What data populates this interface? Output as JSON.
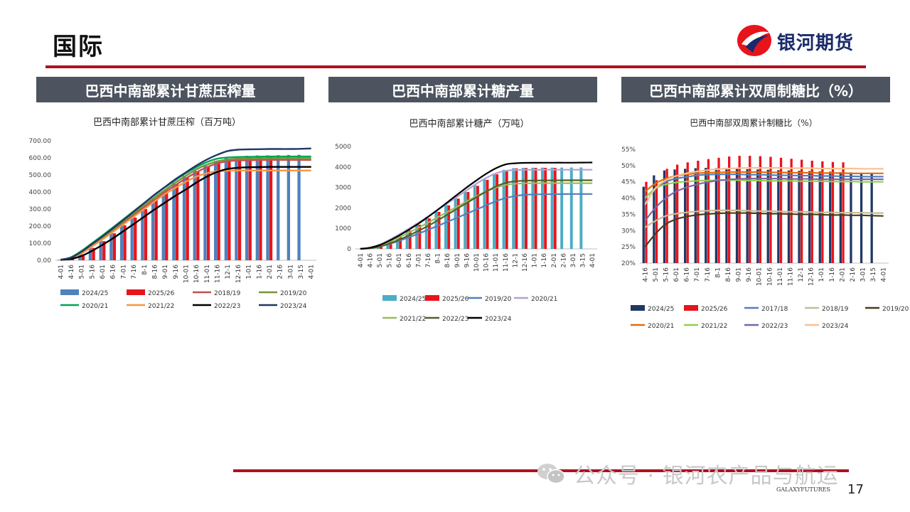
{
  "header": {
    "title": "国际",
    "logo_text": "银河期货"
  },
  "footer": {
    "watermark": "公众号 · 银河农产品与航运",
    "brand": "GALAXYFUTURES",
    "page_number": "17"
  },
  "chart_data": [
    {
      "panel_title": "巴西中南部累计甘蔗压榨量",
      "title": "巴西中南部累计甘蔗压榨（百万吨）",
      "type": "bar",
      "categories": [
        "4-01",
        "4-16",
        "5-01",
        "5-16",
        "6-01",
        "6-16",
        "7-01",
        "7-16",
        "8-1",
        "8-16",
        "9-01",
        "9-16",
        "10-01",
        "10-16",
        "11-01",
        "11-16",
        "12-1",
        "12-16",
        "1-01",
        "1-16",
        "2-01",
        "2-16",
        "3-01",
        "3-15",
        "4-01"
      ],
      "yticks": [
        "0.00",
        "100.00",
        "200.00",
        "300.00",
        "400.00",
        "500.00",
        "600.00",
        "700.00"
      ],
      "ylim": [
        0,
        700
      ],
      "legend_position": "bottom",
      "series": [
        {
          "name": "2024/25",
          "kind": "bar",
          "color": "#4f81bd",
          "values": [
            3,
            14,
            41,
            82,
            125,
            165,
            215,
            262,
            310,
            360,
            405,
            455,
            495,
            530,
            560,
            582,
            600,
            608,
            612,
            614,
            615,
            616,
            617,
            618,
            null
          ]
        },
        {
          "name": "2025/26",
          "kind": "bar",
          "color": "#e8141c",
          "values": [
            3,
            14,
            35,
            72,
            112,
            158,
            205,
            250,
            300,
            355,
            402,
            445,
            482,
            522,
            552,
            578,
            595,
            600,
            602,
            604,
            606,
            null,
            null,
            null,
            null
          ]
        },
        {
          "name": "2018/19",
          "kind": "line",
          "color": "#c0504d",
          "values": [
            3,
            15,
            45,
            85,
            130,
            175,
            220,
            265,
            310,
            355,
            400,
            440,
            480,
            515,
            545,
            568,
            580,
            585,
            586,
            587,
            588,
            588,
            588,
            588,
            588
          ]
        },
        {
          "name": "2019/20",
          "kind": "line",
          "color": "#77933c",
          "values": [
            3,
            16,
            48,
            90,
            135,
            180,
            228,
            275,
            322,
            368,
            412,
            455,
            495,
            532,
            560,
            580,
            590,
            594,
            596,
            597,
            598,
            598,
            598,
            598,
            598
          ]
        },
        {
          "name": "2020/21",
          "kind": "line",
          "color": "#00a651",
          "values": [
            3,
            18,
            55,
            100,
            145,
            192,
            240,
            288,
            335,
            382,
            428,
            470,
            510,
            545,
            575,
            595,
            602,
            605,
            606,
            607,
            608,
            608,
            608,
            608,
            608
          ]
        },
        {
          "name": "2021/22",
          "kind": "line",
          "color": "#f79646",
          "values": [
            3,
            14,
            40,
            80,
            122,
            165,
            210,
            255,
            300,
            345,
            388,
            425,
            460,
            490,
            510,
            522,
            525,
            526,
            526,
            526,
            526,
            526,
            526,
            526,
            526
          ]
        },
        {
          "name": "2022/23",
          "kind": "line",
          "color": "#000000",
          "values": [
            2,
            8,
            25,
            55,
            90,
            128,
            170,
            212,
            255,
            298,
            338,
            378,
            415,
            455,
            490,
            518,
            535,
            542,
            545,
            546,
            547,
            547,
            547,
            547,
            547
          ]
        },
        {
          "name": "2023/24",
          "kind": "line",
          "color": "#1f3864",
          "values": [
            3,
            16,
            50,
            95,
            140,
            187,
            235,
            285,
            335,
            385,
            430,
            475,
            515,
            555,
            590,
            618,
            640,
            648,
            650,
            651,
            652,
            652,
            652,
            653,
            655
          ]
        }
      ]
    },
    {
      "panel_title": "巴西中南部累计糖产量",
      "title": "巴西中南部累计糖产（万吨）",
      "type": "bar",
      "categories": [
        "4-01",
        "4-16",
        "5-01",
        "5-16",
        "6-01",
        "6-16",
        "7-01",
        "7-16",
        "8-1",
        "8-16",
        "9-01",
        "9-16",
        "10-01",
        "10-16",
        "11-01",
        "11-16",
        "12-1",
        "12-16",
        "1-01",
        "1-16",
        "2-01",
        "2-16",
        "3-01",
        "3-15",
        "4-01"
      ],
      "yticks": [
        "0",
        "1000",
        "2000",
        "3000",
        "4000",
        "5000"
      ],
      "ylim": [
        0,
        5000
      ],
      "legend_position": "bottom",
      "series": [
        {
          "name": "2024/25",
          "kind": "bar",
          "color": "#4bacc6",
          "values": [
            5,
            60,
            200,
            420,
            680,
            960,
            1250,
            1560,
            1880,
            2200,
            2520,
            2830,
            3130,
            3420,
            3680,
            3860,
            3940,
            3960,
            3965,
            3968,
            3970,
            3972,
            3974,
            3975,
            null
          ]
        },
        {
          "name": "2025/26",
          "kind": "bar",
          "color": "#e8141c",
          "values": [
            5,
            55,
            180,
            380,
            630,
            900,
            1180,
            1490,
            1810,
            2130,
            2460,
            2780,
            3080,
            3370,
            3640,
            3840,
            3930,
            3950,
            3955,
            3958,
            3960,
            null,
            null,
            null,
            null
          ]
        },
        {
          "name": "2019/20",
          "kind": "line",
          "color": "#4f81bd",
          "values": [
            3,
            35,
            110,
            240,
            390,
            560,
            740,
            930,
            1120,
            1320,
            1520,
            1720,
            1920,
            2120,
            2320,
            2480,
            2580,
            2640,
            2660,
            2670,
            2675,
            2678,
            2680,
            2680,
            2680
          ]
        },
        {
          "name": "2020/21",
          "kind": "line",
          "color": "#b4a0d0",
          "values": [
            5,
            65,
            210,
            440,
            700,
            980,
            1270,
            1580,
            1900,
            2220,
            2540,
            2860,
            3180,
            3460,
            3680,
            3810,
            3850,
            3860,
            3862,
            3864,
            3865,
            3865,
            3865,
            3865,
            3865
          ]
        },
        {
          "name": "2021/22",
          "kind": "line",
          "color": "#9bbb59",
          "values": [
            4,
            50,
            165,
            345,
            560,
            790,
            1030,
            1280,
            1540,
            1800,
            2060,
            2320,
            2570,
            2800,
            2990,
            3120,
            3180,
            3200,
            3205,
            3208,
            3210,
            3210,
            3210,
            3210,
            3210
          ]
        },
        {
          "name": "2022/23",
          "kind": "line",
          "color": "#4f6228",
          "values": [
            3,
            30,
            110,
            260,
            440,
            650,
            880,
            1120,
            1390,
            1670,
            1960,
            2240,
            2520,
            2790,
            3040,
            3220,
            3300,
            3330,
            3340,
            3345,
            3348,
            3350,
            3350,
            3350,
            3350
          ]
        },
        {
          "name": "2023/24",
          "kind": "line",
          "color": "#000000",
          "values": [
            4,
            55,
            185,
            400,
            650,
            930,
            1230,
            1560,
            1910,
            2270,
            2640,
            3000,
            3340,
            3660,
            3930,
            4120,
            4180,
            4200,
            4205,
            4208,
            4210,
            4210,
            4210,
            4215,
            4220
          ]
        }
      ]
    },
    {
      "panel_title": "巴西中南部累计双周制糖比（%）",
      "title": "巴西中南部双周累计制糖比（%）",
      "type": "bar",
      "categories": [
        "4-16",
        "5-01",
        "5-16",
        "6-01",
        "6-16",
        "7-01",
        "7-16",
        "8-1",
        "8-16",
        "9-01",
        "9-16",
        "10-01",
        "10-16",
        "11-01",
        "11-16",
        "12-1",
        "12-16",
        "1-01",
        "1-16",
        "2-01",
        "2-16",
        "3-01",
        "3-15",
        "4-01"
      ],
      "yticks": [
        "20%",
        "25%",
        "30%",
        "35%",
        "40%",
        "45%",
        "50%",
        "55%"
      ],
      "ylim": [
        20,
        55
      ],
      "legend_position": "bottom",
      "series": [
        {
          "name": "2024/25",
          "kind": "bar",
          "color": "#1f3864",
          "values": [
            43.5,
            47,
            48.5,
            48.8,
            49,
            49.2,
            49.3,
            49.2,
            49.1,
            49,
            48.9,
            48.8,
            48.7,
            48.6,
            48.5,
            48.4,
            48.3,
            48.2,
            48.1,
            48,
            47.9,
            47.8,
            47.8,
            null
          ]
        },
        {
          "name": "2025/26",
          "kind": "bar",
          "color": "#e8141c",
          "values": [
            45,
            45.5,
            49,
            50.3,
            51,
            51.5,
            52,
            52.4,
            52.8,
            53,
            53,
            52.9,
            52.7,
            52.4,
            52.1,
            51.8,
            51.5,
            51.3,
            51.1,
            51,
            null,
            null,
            null,
            null
          ]
        },
        {
          "name": "2017/18",
          "kind": "line",
          "color": "#4f81bd",
          "values": [
            40,
            43,
            45,
            46,
            46.5,
            47,
            47.2,
            47.3,
            47.3,
            47.3,
            47.2,
            47.2,
            47.1,
            47,
            47,
            46.9,
            46.9,
            46.8,
            46.8,
            46.7,
            46.7,
            46.6,
            46.6,
            46.6
          ]
        },
        {
          "name": "2018/19",
          "kind": "line",
          "color": "#c4bd97",
          "values": [
            31,
            33,
            34.5,
            35.2,
            35.6,
            35.9,
            36.1,
            36.2,
            36.2,
            36.2,
            36.1,
            36,
            36,
            35.9,
            35.8,
            35.8,
            35.7,
            35.6,
            35.6,
            35.5,
            35.5,
            35.5,
            35.4,
            35.4
          ]
        },
        {
          "name": "2019/20",
          "kind": "line",
          "color": "#4a3b1c",
          "values": [
            25,
            29,
            32,
            33.5,
            34.3,
            34.8,
            35.1,
            35.3,
            35.4,
            35.4,
            35.4,
            35.3,
            35.2,
            35.2,
            35.1,
            35,
            35,
            34.9,
            34.8,
            34.8,
            34.7,
            34.7,
            34.6,
            34.5
          ]
        },
        {
          "name": "2020/21",
          "kind": "line",
          "color": "#e36c09",
          "values": [
            42,
            44.5,
            46,
            46.8,
            47.3,
            47.6,
            47.8,
            47.9,
            48,
            48,
            48,
            48,
            47.9,
            47.9,
            47.8,
            47.8,
            47.8,
            47.7,
            47.7,
            47.7,
            47.6,
            47.6,
            47.6,
            47.6
          ]
        },
        {
          "name": "2021/22",
          "kind": "line",
          "color": "#92d050",
          "values": [
            40,
            43,
            44.2,
            44.8,
            45.1,
            45.3,
            45.4,
            45.5,
            45.5,
            45.5,
            45.4,
            45.4,
            45.3,
            45.3,
            45.3,
            45.2,
            45.2,
            45.2,
            45.1,
            45.1,
            45.1,
            45,
            45,
            45
          ]
        },
        {
          "name": "2022/23",
          "kind": "line",
          "color": "#7f64a8",
          "values": [
            33,
            37,
            40,
            42,
            43.3,
            44.2,
            44.9,
            45.4,
            45.7,
            45.9,
            46,
            46,
            46,
            46,
            45.9,
            45.9,
            45.9,
            45.8,
            45.8,
            45.8,
            45.8,
            45.8,
            45.8,
            45.8
          ]
        },
        {
          "name": "2023/24",
          "kind": "line",
          "color": "#fac090",
          "values": [
            38,
            43,
            45.5,
            46.8,
            47.6,
            48.2,
            48.6,
            48.9,
            49.1,
            49.2,
            49.3,
            49.3,
            49.3,
            49.3,
            49.2,
            49.2,
            49.2,
            49.1,
            49.1,
            49.1,
            49.1,
            49,
            49,
            49
          ]
        }
      ]
    }
  ]
}
